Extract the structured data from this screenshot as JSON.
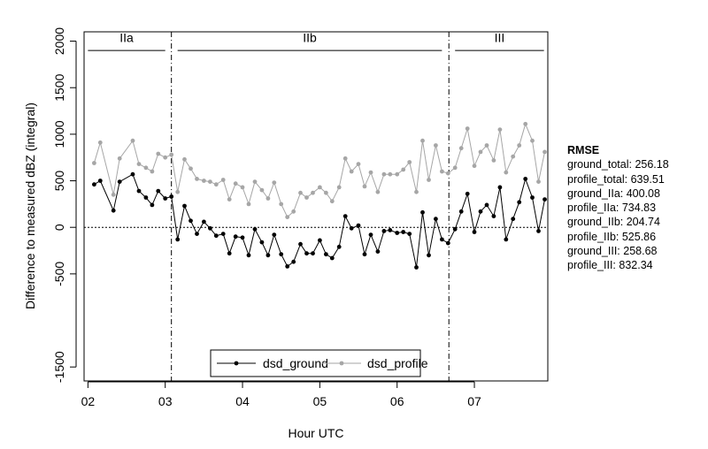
{
  "chart_data": {
    "type": "line",
    "xlabel": "Hour UTC",
    "ylabel": "Difference to measured dBZ (integral)",
    "xlim": [
      1.95,
      7.95
    ],
    "ylim": [
      -1650,
      2100
    ],
    "x_ticks": [
      {
        "value": 2,
        "label": "02"
      },
      {
        "value": 3,
        "label": "03"
      },
      {
        "value": 4,
        "label": "04"
      },
      {
        "value": 5,
        "label": "05"
      },
      {
        "value": 6,
        "label": "06"
      },
      {
        "value": 7,
        "label": "07"
      }
    ],
    "y_ticks": [
      {
        "value": 2000,
        "label": "2000"
      },
      {
        "value": 1500,
        "label": "1500"
      },
      {
        "value": 1000,
        "label": "1000"
      },
      {
        "value": 500,
        "label": "500"
      },
      {
        "value": 0,
        "label": "0"
      },
      {
        "value": -500,
        "label": "-500"
      },
      {
        "value": -1500,
        "label": "-1500"
      }
    ],
    "zero_line": 0,
    "phase_boundaries": [
      3.08,
      6.67
    ],
    "phases": [
      {
        "label": "IIa",
        "start": 2.0,
        "end": 3.0
      },
      {
        "label": "IIb",
        "start": 3.16,
        "end": 6.58
      },
      {
        "label": "III",
        "start": 6.75,
        "end": 7.9
      }
    ],
    "series": [
      {
        "name": "dsd_ground",
        "color": "#000000",
        "x": [
          2.08,
          2.16,
          2.33,
          2.41,
          2.58,
          2.66,
          2.75,
          2.83,
          2.91,
          3.0,
          3.08,
          3.16,
          3.25,
          3.33,
          3.41,
          3.5,
          3.58,
          3.66,
          3.75,
          3.83,
          3.91,
          4.0,
          4.08,
          4.16,
          4.25,
          4.33,
          4.41,
          4.5,
          4.58,
          4.66,
          4.75,
          4.83,
          4.91,
          5.0,
          5.08,
          5.16,
          5.25,
          5.33,
          5.41,
          5.5,
          5.58,
          5.66,
          5.75,
          5.83,
          5.91,
          6.0,
          6.08,
          6.16,
          6.25,
          6.33,
          6.41,
          6.5,
          6.58,
          6.66,
          6.75,
          6.83,
          6.91,
          7.0,
          7.08,
          7.16,
          7.25,
          7.33,
          7.41,
          7.5,
          7.58,
          7.66,
          7.75,
          7.83,
          7.91
        ],
        "y": [
          460,
          500,
          180,
          490,
          570,
          390,
          320,
          240,
          390,
          310,
          330,
          -130,
          230,
          70,
          -70,
          60,
          -10,
          -90,
          -70,
          -280,
          -100,
          -110,
          -300,
          -20,
          -160,
          -300,
          -80,
          -290,
          -420,
          -370,
          -180,
          -280,
          -280,
          -140,
          -290,
          -330,
          -210,
          120,
          -10,
          20,
          -290,
          -80,
          -260,
          -40,
          -30,
          -60,
          -50,
          -70,
          -430,
          160,
          -300,
          90,
          -130,
          -170,
          -20,
          170,
          360,
          -50,
          170,
          240,
          120,
          430,
          -130,
          90,
          270,
          520,
          320,
          -40,
          300
        ]
      },
      {
        "name": "dsd_profile",
        "color": "#a6a6a6",
        "x": [
          2.08,
          2.16,
          2.33,
          2.41,
          2.58,
          2.66,
          2.75,
          2.83,
          2.91,
          3.0,
          3.08,
          3.16,
          3.25,
          3.33,
          3.41,
          3.5,
          3.58,
          3.66,
          3.75,
          3.83,
          3.91,
          4.0,
          4.08,
          4.16,
          4.25,
          4.33,
          4.41,
          4.5,
          4.58,
          4.66,
          4.75,
          4.83,
          4.91,
          5.0,
          5.08,
          5.16,
          5.25,
          5.33,
          5.41,
          5.5,
          5.58,
          5.66,
          5.75,
          5.83,
          5.91,
          6.0,
          6.08,
          6.16,
          6.25,
          6.33,
          6.41,
          6.5,
          6.58,
          6.66,
          6.75,
          6.83,
          6.91,
          7.0,
          7.08,
          7.16,
          7.25,
          7.33,
          7.41,
          7.5,
          7.58,
          7.66,
          7.75,
          7.83,
          7.91
        ],
        "y": [
          690,
          910,
          350,
          740,
          930,
          680,
          640,
          600,
          790,
          750,
          780,
          380,
          730,
          630,
          520,
          500,
          490,
          460,
          510,
          300,
          470,
          430,
          250,
          490,
          400,
          310,
          480,
          250,
          110,
          170,
          370,
          320,
          370,
          430,
          370,
          280,
          430,
          740,
          600,
          680,
          440,
          590,
          380,
          570,
          570,
          570,
          620,
          700,
          380,
          930,
          510,
          880,
          600,
          580,
          640,
          850,
          1060,
          660,
          810,
          880,
          720,
          1050,
          590,
          760,
          880,
          1110,
          930,
          490,
          810
        ]
      }
    ],
    "legend": {
      "placement": "bottom-center",
      "entries": [
        "dsd_ground",
        "dsd_profile"
      ]
    },
    "rmse": {
      "title": "RMSE",
      "lines": [
        "ground_total: 256.18",
        "profile_total: 639.51",
        "ground_IIa: 400.08",
        "profile_IIa: 734.83",
        "ground_IIb: 204.74",
        "profile_IIb: 525.86",
        "ground_III: 258.68",
        "profile_III: 832.34"
      ]
    }
  }
}
